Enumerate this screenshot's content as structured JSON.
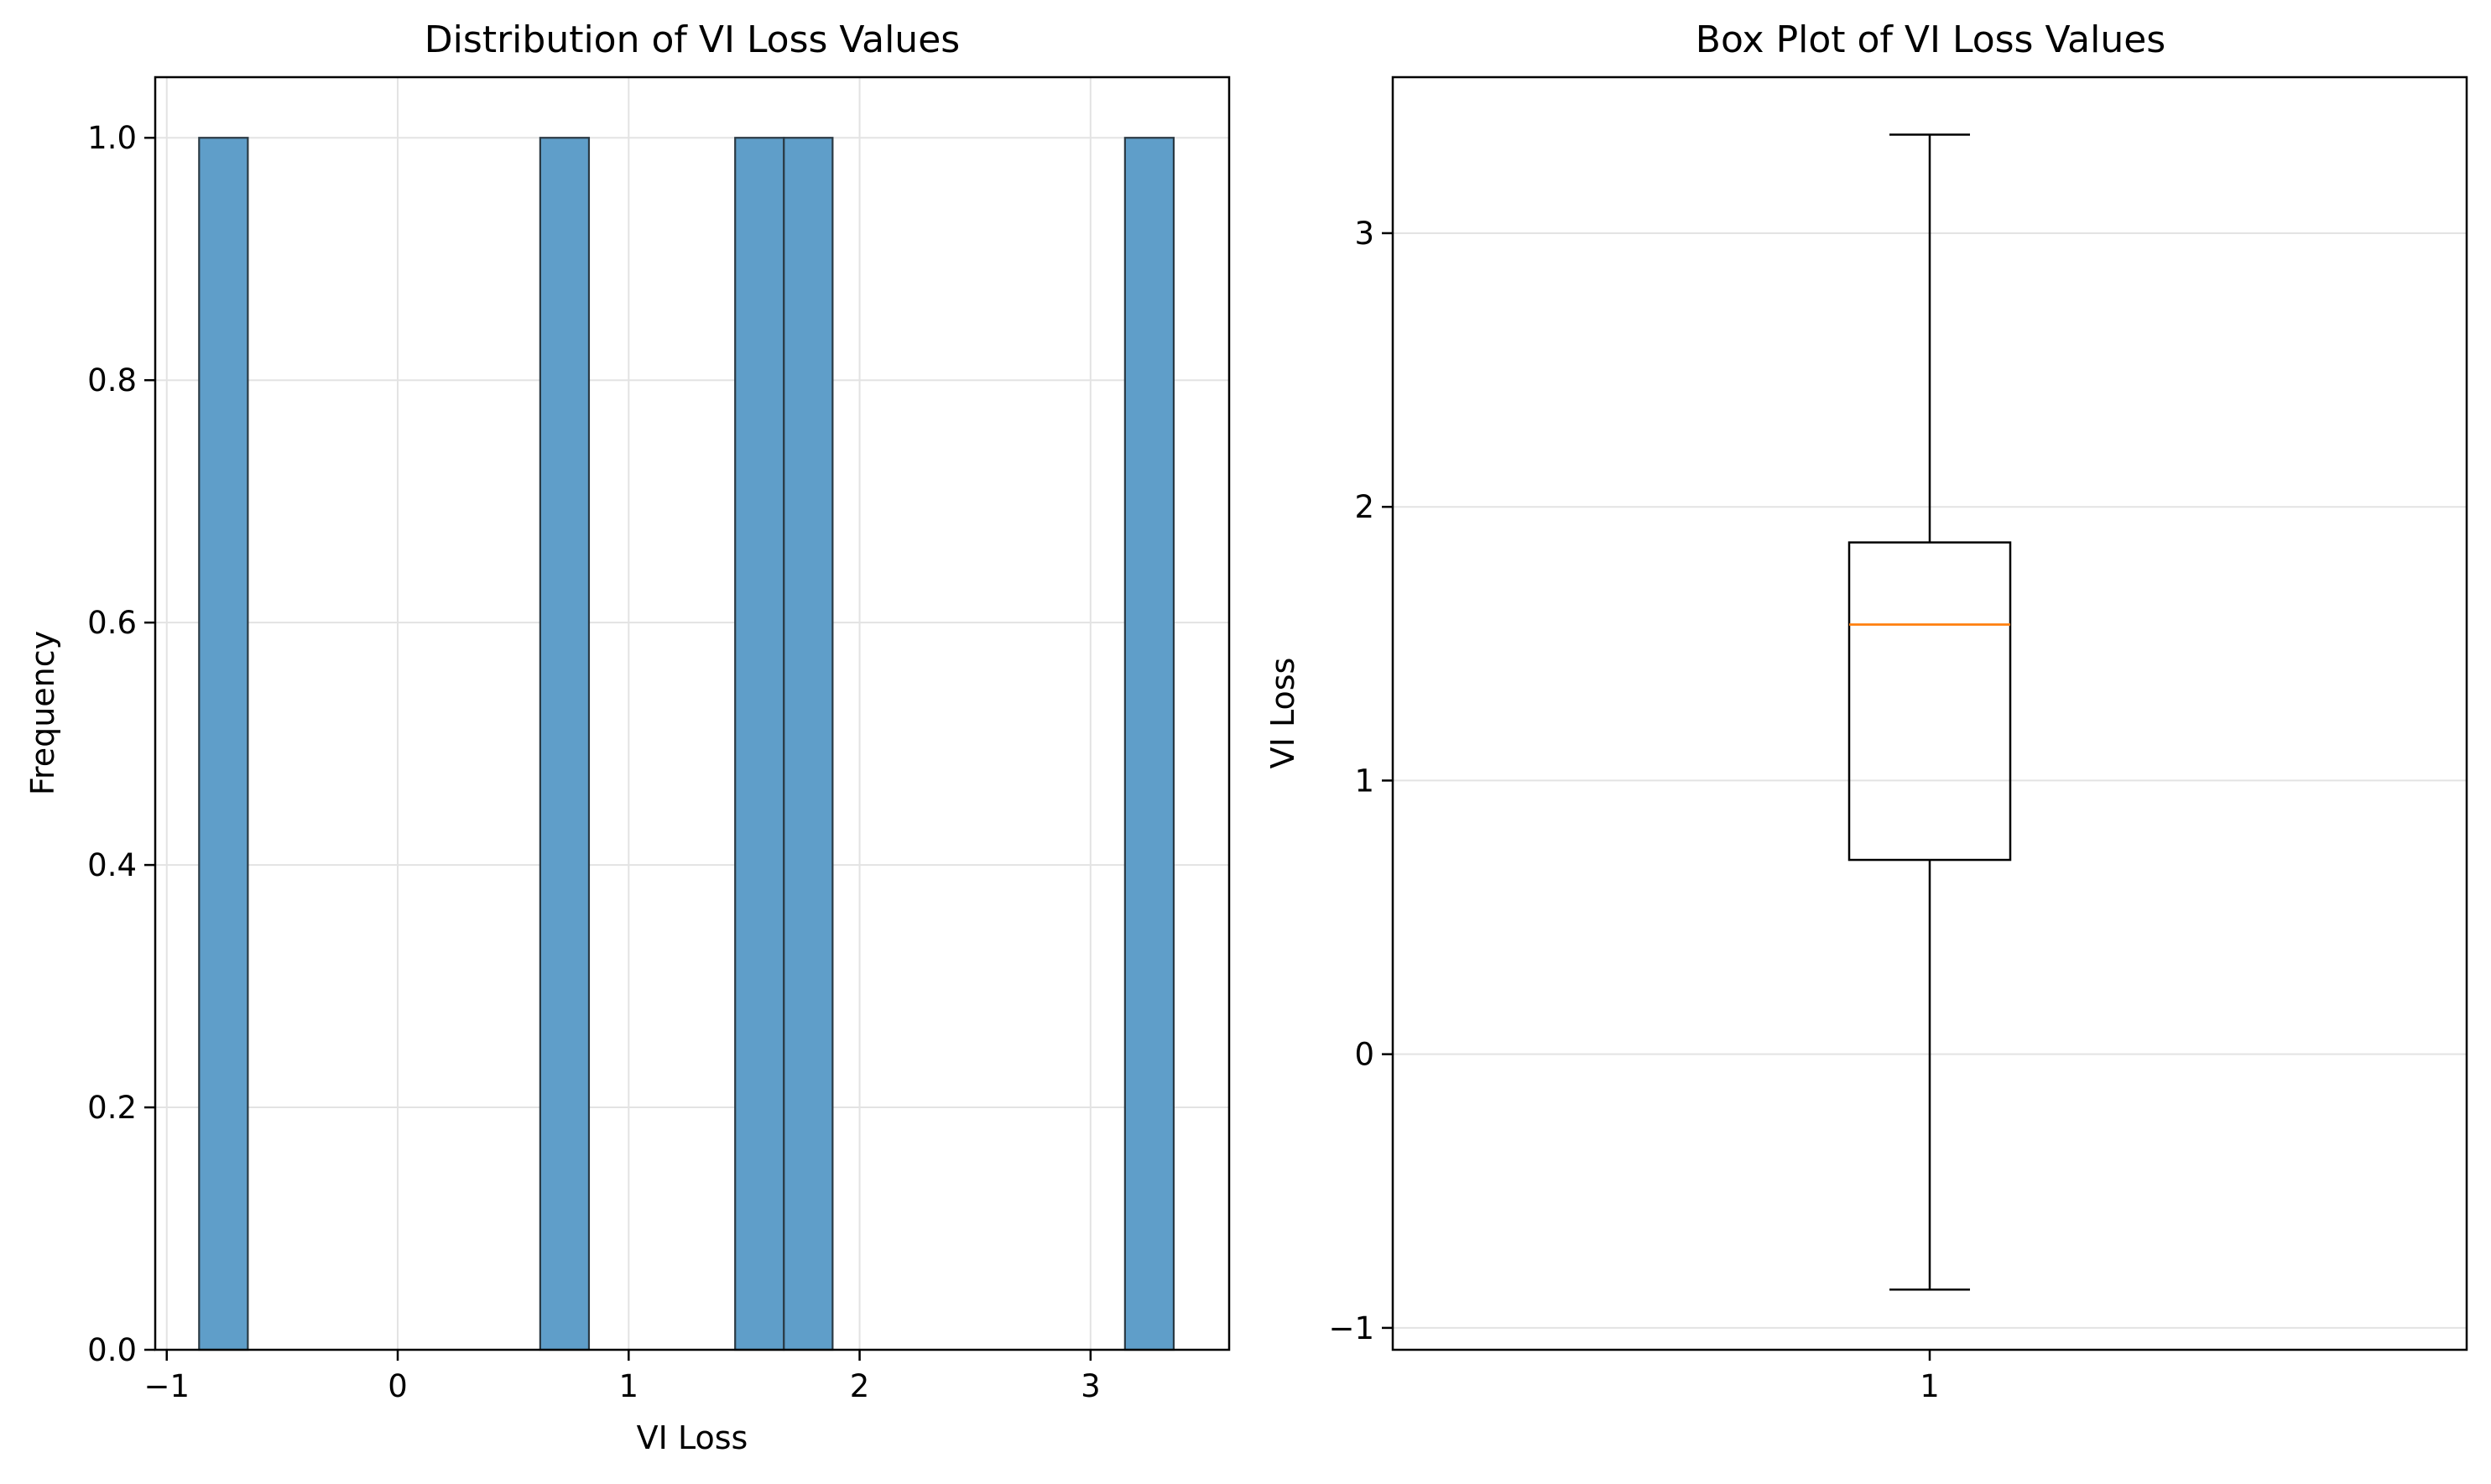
{
  "chart_data": [
    {
      "type": "bar",
      "subtype": "histogram",
      "title": "Distribution of VI Loss Values",
      "xlabel": "VI Loss",
      "ylabel": "Frequency",
      "xlim": [
        -1.05,
        3.6
      ],
      "ylim": [
        0,
        1.05
      ],
      "xticks": [
        -1,
        0,
        1,
        2,
        3
      ],
      "xtick_labels": [
        "−1",
        "0",
        "1",
        "2",
        "3"
      ],
      "yticks": [
        0,
        0.2,
        0.4,
        0.6,
        0.8,
        1.0
      ],
      "ytick_labels": [
        "0.0",
        "0.2",
        "0.4",
        "0.6",
        "0.8",
        "1.0"
      ],
      "bin_range": [
        -0.86,
        3.36
      ],
      "bin_count": 20,
      "counts": [
        1,
        0,
        0,
        0,
        0,
        0,
        0,
        1,
        0,
        0,
        0,
        1,
        1,
        0,
        0,
        0,
        0,
        0,
        0,
        1
      ],
      "grid": true,
      "colors": {
        "bar": "#5f9ec9",
        "edge": "#2b3a44",
        "grid": "#e3e3e3"
      }
    },
    {
      "type": "box",
      "title": "Box Plot of VI Loss Values",
      "xlabel": "",
      "ylabel": "VI Loss",
      "xlim": [
        0.5,
        1.5
      ],
      "ylim": [
        -1.08,
        3.57
      ],
      "xticks": [
        1
      ],
      "xtick_labels": [
        "1"
      ],
      "yticks": [
        -1,
        0,
        1,
        2,
        3
      ],
      "ytick_labels": [
        "−1",
        "0",
        "1",
        "2",
        "3"
      ],
      "box": {
        "position": 1,
        "whisker_low": -0.86,
        "q1": 0.71,
        "median": 1.57,
        "q3": 1.87,
        "whisker_high": 3.36
      },
      "grid": true,
      "colors": {
        "median": "#ff7f0e",
        "box": "#000000",
        "grid": "#e3e3e3"
      }
    }
  ]
}
